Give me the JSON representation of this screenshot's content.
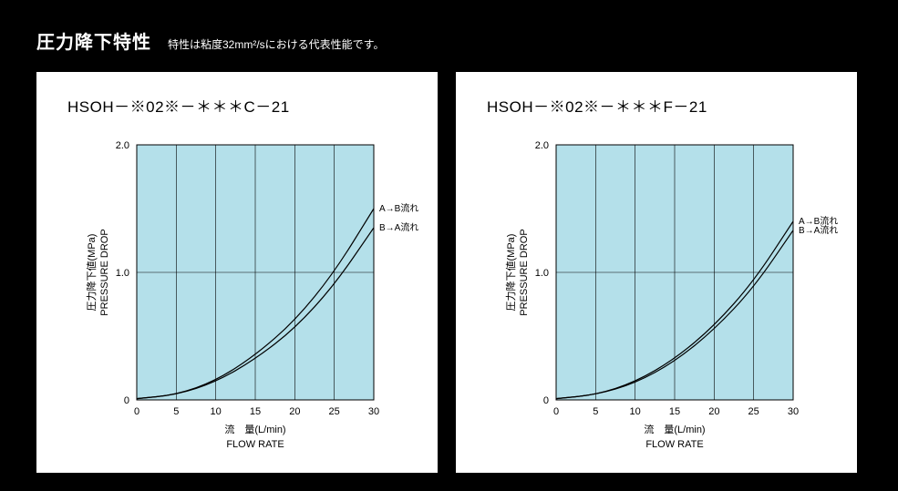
{
  "header": {
    "title": "圧力降下特性",
    "subtitle": "特性は粘度32mm²/sにおける代表性能です。"
  },
  "panels": [
    {
      "title": "HSOH－※02※－＊＊＊C－21",
      "chart": {
        "type": "line",
        "plot_bg": "#b4e0ea",
        "panel_bg": "#ffffff",
        "grid_color": "#000000",
        "axis_color": "#000000",
        "line_color": "#000000",
        "line_width": 1.2,
        "xlabel_jp": "流　量(L/min)",
        "xlabel_en": "FLOW RATE",
        "ylabel_jp": "圧力降下値(MPa)",
        "ylabel_en": "PRESSURE DROP",
        "xlim": [
          0,
          30
        ],
        "ylim": [
          0,
          2.0
        ],
        "xticks": [
          0,
          5,
          10,
          15,
          20,
          25,
          30
        ],
        "yticks": [
          0,
          1.0,
          2.0
        ],
        "ytick_labels": [
          "0",
          "1.0",
          "2.0"
        ],
        "label_fontsize": 11,
        "tick_fontsize": 11,
        "series": [
          {
            "name": "A→B流れ",
            "points": [
              [
                0,
                0.01
              ],
              [
                5,
                0.04
              ],
              [
                10,
                0.15
              ],
              [
                15,
                0.35
              ],
              [
                20,
                0.62
              ],
              [
                25,
                1.0
              ],
              [
                30,
                1.5
              ]
            ]
          },
          {
            "name": "B→A流れ",
            "points": [
              [
                0,
                0.01
              ],
              [
                5,
                0.04
              ],
              [
                10,
                0.14
              ],
              [
                15,
                0.32
              ],
              [
                20,
                0.56
              ],
              [
                25,
                0.9
              ],
              [
                30,
                1.35
              ]
            ]
          }
        ],
        "series_label_fontsize": 10
      }
    },
    {
      "title": "HSOH－※02※－＊＊＊F－21",
      "chart": {
        "type": "line",
        "plot_bg": "#b4e0ea",
        "panel_bg": "#ffffff",
        "grid_color": "#000000",
        "axis_color": "#000000",
        "line_color": "#000000",
        "line_width": 1.2,
        "xlabel_jp": "流　量(L/min)",
        "xlabel_en": "FLOW RATE",
        "ylabel_jp": "圧力降下値(MPa)",
        "ylabel_en": "PRESSURE DROP",
        "xlim": [
          0,
          30
        ],
        "ylim": [
          0,
          2.0
        ],
        "xticks": [
          0,
          5,
          10,
          15,
          20,
          25,
          30
        ],
        "yticks": [
          0,
          1.0,
          2.0
        ],
        "ytick_labels": [
          "0",
          "1.0",
          "2.0"
        ],
        "label_fontsize": 11,
        "tick_fontsize": 11,
        "series": [
          {
            "name": "A→B流れ",
            "points": [
              [
                0,
                0.01
              ],
              [
                5,
                0.04
              ],
              [
                10,
                0.14
              ],
              [
                15,
                0.32
              ],
              [
                20,
                0.58
              ],
              [
                25,
                0.93
              ],
              [
                30,
                1.4
              ]
            ]
          },
          {
            "name": "B→A流れ",
            "points": [
              [
                0,
                0.01
              ],
              [
                5,
                0.04
              ],
              [
                10,
                0.13
              ],
              [
                15,
                0.3
              ],
              [
                20,
                0.55
              ],
              [
                25,
                0.88
              ],
              [
                30,
                1.33
              ]
            ]
          }
        ],
        "series_label_fontsize": 10
      }
    }
  ]
}
